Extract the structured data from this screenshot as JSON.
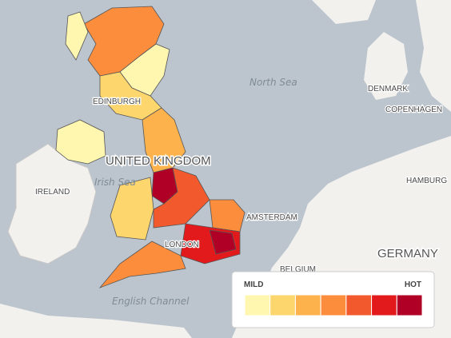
{
  "map": {
    "labels": {
      "north_sea": "North Sea",
      "edinburgh": "EDINBURGH",
      "denmark": "DENMARK",
      "copenhagen": "COPENHAGEN",
      "united_kingdom": "UNITED KINGDOM",
      "ireland": "IRELAND",
      "irish_sea": "Irish Sea",
      "amsterdam": "AMSTERDAM",
      "hamburg": "HAMBURG",
      "london": "LONDON",
      "germany": "GERMANY",
      "belgium": "BELGIUM",
      "english_channel": "English Channel"
    },
    "legend": {
      "min_label": "MILD",
      "max_label": "HOT",
      "colors": [
        "#fff7b0",
        "#fed66e",
        "#fdb24c",
        "#fc8d3c",
        "#f25a2d",
        "#e31a1c",
        "#b10026"
      ]
    }
  }
}
